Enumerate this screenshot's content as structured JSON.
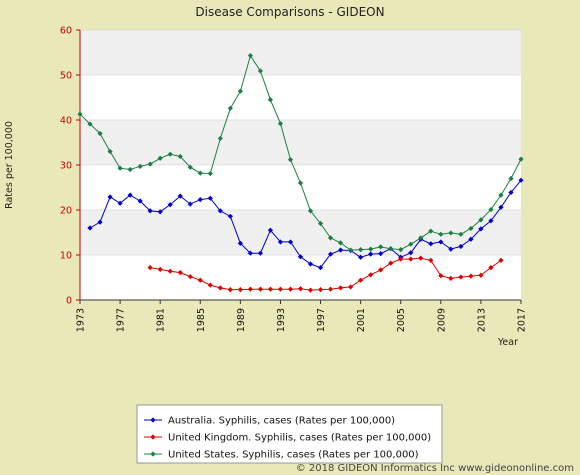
{
  "chart_data": {
    "type": "line",
    "title": "Disease Comparisons - GIDEON",
    "xlabel": "Year",
    "ylabel": "Rates per 100,000",
    "xlim": [
      1973,
      2017
    ],
    "ylim": [
      0,
      60
    ],
    "x_ticks": [
      "1973",
      "1977",
      "1981",
      "1985",
      "1989",
      "1993",
      "1997",
      "2001",
      "2005",
      "2009",
      "2013",
      "2017"
    ],
    "y_ticks": [
      "0",
      "10",
      "20",
      "30",
      "40",
      "50",
      "60"
    ],
    "grid": "horizontal bands",
    "legend_position": "bottom",
    "series": [
      {
        "name": "Australia. Syphilis, cases (Rates per 100,000)",
        "color": "#0000cc",
        "x": [
          1974,
          1975,
          1976,
          1977,
          1978,
          1979,
          1980,
          1981,
          1982,
          1983,
          1984,
          1985,
          1986,
          1987,
          1988,
          1989,
          1990,
          1991,
          1992,
          1993,
          1994,
          1995,
          1996,
          1997,
          1998,
          1999,
          2000,
          2001,
          2002,
          2003,
          2004,
          2005,
          2006,
          2007,
          2008,
          2009,
          2010,
          2011,
          2012,
          2013,
          2014,
          2015,
          2016,
          2017
        ],
        "y": [
          16,
          17.3,
          22.9,
          21.5,
          23.3,
          22,
          19.8,
          19.6,
          21.2,
          23.1,
          21.3,
          22.3,
          22.6,
          19.8,
          18.6,
          12.6,
          10.4,
          10.4,
          15.5,
          12.9,
          12.9,
          9.6,
          8,
          7.2,
          10.2,
          11.1,
          11,
          9.5,
          10.2,
          10.3,
          11.4,
          9.5,
          10.5,
          13.5,
          12.5,
          12.9,
          11.3,
          11.9,
          13.5,
          15.8,
          17.6,
          20.6,
          23.9,
          26.6
        ]
      },
      {
        "name": "United Kingdom. Syphilis, cases (Rates per 100,000)",
        "color": "#dd0000",
        "x": [
          1980,
          1981,
          1982,
          1983,
          1984,
          1985,
          1986,
          1987,
          1988,
          1989,
          1990,
          1991,
          1992,
          1993,
          1994,
          1995,
          1996,
          1997,
          1998,
          1999,
          2000,
          2001,
          2002,
          2003,
          2004,
          2005,
          2006,
          2007,
          2008,
          2009,
          2010,
          2011,
          2012,
          2013,
          2014,
          2015
        ],
        "y": [
          7.2,
          6.8,
          6.4,
          6.1,
          5.2,
          4.4,
          3.3,
          2.7,
          2.3,
          2.3,
          2.4,
          2.4,
          2.4,
          2.4,
          2.4,
          2.5,
          2.2,
          2.3,
          2.4,
          2.7,
          2.9,
          4.4,
          5.6,
          6.7,
          8.2,
          9.1,
          9.1,
          9.3,
          8.8,
          5.4,
          4.8,
          5.1,
          5.3,
          5.5,
          7.2,
          8.8
        ]
      },
      {
        "name": "United States. Syphilis, cases (Rates per 100,000)",
        "color": "#1a8040",
        "x": [
          1973,
          1974,
          1975,
          1976,
          1977,
          1978,
          1979,
          1980,
          1981,
          1982,
          1983,
          1984,
          1985,
          1986,
          1987,
          1988,
          1989,
          1990,
          1991,
          1992,
          1993,
          1994,
          1995,
          1996,
          1997,
          1998,
          1999,
          2000,
          2001,
          2002,
          2003,
          2004,
          2005,
          2006,
          2007,
          2008,
          2009,
          2010,
          2011,
          2012,
          2013,
          2014,
          2015,
          2016,
          2017
        ],
        "y": [
          41.3,
          39.1,
          37,
          33,
          29.3,
          29,
          29.7,
          30.2,
          31.5,
          32.4,
          31.9,
          29.5,
          28.2,
          28.1,
          35.9,
          42.6,
          46.4,
          54.3,
          50.9,
          44.5,
          39.2,
          31.2,
          26,
          19.8,
          17,
          13.8,
          12.7,
          11.1,
          11.2,
          11.3,
          11.8,
          11.4,
          11.2,
          12.4,
          13.8,
          15.3,
          14.6,
          14.9,
          14.6,
          15.9,
          17.8,
          20.1,
          23.3,
          27,
          31.3
        ]
      }
    ]
  },
  "footer": "© 2018 GIDEON Informatics Inc www.gideononline.com"
}
